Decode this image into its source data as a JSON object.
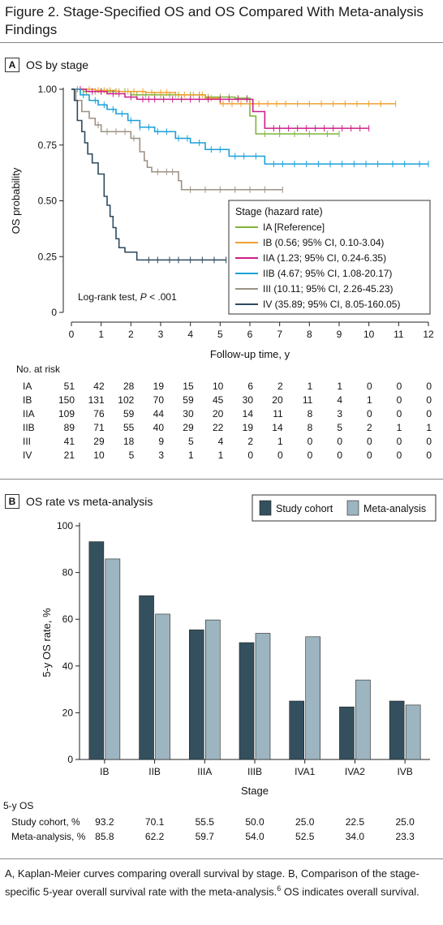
{
  "figure": {
    "title_line1": "Figure 2. Stage-Specified OS and OS Compared With Meta-analysis",
    "title_line2": "Findings",
    "caption_part1": "A, Kaplan-Meier curves comparing overall survival by stage. B, Comparison of the stage-specific 5-year overall survival rate with the meta-analysis.",
    "caption_sup": "6",
    "caption_part2": " OS indicates overall survival."
  },
  "panel_a": {
    "letter": "A",
    "title": "OS by stage",
    "note_prefix": "Log-rank test, ",
    "note_italic": "P",
    "note_suffix": " < .001",
    "risk_title": "No. at risk"
  },
  "panel_b": {
    "letter": "B",
    "title": "OS rate vs meta-analysis",
    "table_title": "5-y OS"
  },
  "colors": {
    "IA": "#7fb539",
    "IB": "#f0a030",
    "IIA": "#cc1e88",
    "IIB": "#1aa0d8",
    "III": "#9c9284",
    "IV": "#2e4a5e",
    "study": "#34505e",
    "meta": "#9db5c0"
  },
  "chart_data": [
    {
      "type": "line",
      "title": "OS by stage",
      "xlabel": "Follow-up time, y",
      "ylabel": "OS probability",
      "xlim": [
        0,
        12
      ],
      "ylim": [
        0,
        1
      ],
      "xticks": [
        0,
        1,
        2,
        3,
        4,
        5,
        6,
        7,
        8,
        9,
        10,
        11,
        12
      ],
      "yticks": [
        0,
        0.25,
        0.5,
        0.75,
        1.0
      ],
      "ytick_labels": [
        "0",
        "0.25",
        "0.50",
        "0.75",
        "1.00"
      ],
      "legend_title": "Stage (hazard rate)",
      "legend_position": "right",
      "series": [
        {
          "name": "IA [Reference]",
          "key": "IA",
          "x": [
            0,
            0.4,
            2.0,
            4.5,
            5.5,
            6.0,
            6.2,
            9.0
          ],
          "y": [
            1.0,
            0.99,
            0.975,
            0.965,
            0.96,
            0.88,
            0.8,
            0.8
          ],
          "censor_x": [
            0.2,
            0.5,
            0.8,
            1.0,
            1.2,
            1.5,
            1.8,
            2.2,
            2.5,
            2.8,
            3.0,
            3.3,
            3.6,
            4.0,
            4.3,
            4.6,
            5.0,
            5.3,
            5.6,
            5.9,
            6.5,
            7.0,
            7.5,
            8.0,
            8.6,
            9.0
          ]
        },
        {
          "name": "IB (0.56; 95% CI, 0.10-3.04)",
          "key": "IB",
          "x": [
            0,
            0.8,
            1.5,
            2.5,
            3.5,
            4.5,
            5.0,
            10.9
          ],
          "y": [
            1.0,
            0.995,
            0.99,
            0.985,
            0.975,
            0.96,
            0.935,
            0.935
          ],
          "censor_x": [
            0.3,
            0.6,
            0.9,
            1.1,
            1.3,
            1.6,
            1.9,
            2.1,
            2.4,
            2.7,
            3.0,
            3.2,
            3.5,
            3.8,
            4.1,
            4.4,
            4.7,
            5.1,
            5.4,
            5.7,
            6.0,
            6.3,
            6.6,
            6.9,
            7.2,
            7.6,
            8.0,
            8.4,
            8.8,
            9.2,
            9.6,
            10.0,
            10.4,
            10.9
          ]
        },
        {
          "name": "IIA (1.23; 95% CI, 0.24-6.35)",
          "key": "IIA",
          "x": [
            0,
            0.5,
            1.2,
            1.8,
            2.2,
            6.1,
            6.5,
            10.0
          ],
          "y": [
            1.0,
            0.99,
            0.98,
            0.965,
            0.955,
            0.9,
            0.825,
            0.825
          ],
          "censor_x": [
            0.3,
            0.7,
            1.0,
            1.4,
            1.6,
            2.0,
            2.4,
            2.6,
            2.8,
            3.1,
            3.4,
            3.7,
            4.0,
            4.3,
            4.6,
            5.0,
            5.3,
            5.6,
            5.9,
            6.8,
            7.0,
            7.3,
            7.6,
            7.9,
            8.2,
            8.5,
            8.8,
            9.1,
            9.4,
            9.7,
            10.0
          ]
        },
        {
          "name": "IIB (4.67; 95% CI, 1.08-20.17)",
          "key": "IIB",
          "x": [
            0,
            0.3,
            0.6,
            0.9,
            1.2,
            1.5,
            1.9,
            2.3,
            2.8,
            3.5,
            4.0,
            4.5,
            5.3,
            6.5,
            12.0
          ],
          "y": [
            1.0,
            0.975,
            0.95,
            0.93,
            0.91,
            0.89,
            0.86,
            0.83,
            0.81,
            0.78,
            0.76,
            0.73,
            0.7,
            0.665,
            0.665
          ],
          "censor_x": [
            0.4,
            0.8,
            1.1,
            1.4,
            1.7,
            2.0,
            2.3,
            2.6,
            2.9,
            3.2,
            3.6,
            3.9,
            4.3,
            4.7,
            5.0,
            5.5,
            5.8,
            6.2,
            6.8,
            7.1,
            7.5,
            7.9,
            8.3,
            8.7,
            9.1,
            9.5,
            9.9,
            10.3,
            10.8,
            11.2,
            11.7,
            12.0
          ]
        },
        {
          "name": "III (10.11; 95% CI, 2.26-45.23)",
          "key": "III",
          "x": [
            0,
            0.15,
            0.35,
            0.6,
            0.8,
            1.0,
            2.0,
            2.3,
            2.45,
            2.55,
            2.7,
            3.6,
            3.7,
            7.1
          ],
          "y": [
            1.0,
            0.95,
            0.9,
            0.87,
            0.84,
            0.81,
            0.78,
            0.72,
            0.68,
            0.65,
            0.63,
            0.59,
            0.55,
            0.55
          ],
          "censor_x": [
            0.9,
            1.2,
            1.5,
            1.8,
            2.1,
            2.9,
            3.2,
            3.4,
            4.0,
            4.5,
            5.0,
            5.5,
            6.0,
            6.5,
            7.1
          ]
        },
        {
          "name": "IV (35.89; 95% CI, 8.05-160.05)",
          "key": "IV",
          "x": [
            0,
            0.1,
            0.2,
            0.35,
            0.45,
            0.55,
            0.7,
            0.9,
            1.1,
            1.2,
            1.3,
            1.4,
            1.5,
            1.6,
            1.8,
            2.2,
            5.2
          ],
          "y": [
            1.0,
            0.95,
            0.86,
            0.81,
            0.76,
            0.71,
            0.67,
            0.62,
            0.52,
            0.48,
            0.43,
            0.38,
            0.33,
            0.29,
            0.27,
            0.235,
            0.235
          ],
          "censor_x": [
            2.6,
            2.9,
            3.3,
            3.6,
            4.0,
            4.4,
            4.8,
            5.2
          ]
        }
      ],
      "annotation": "Log-rank test, P < .001"
    },
    {
      "type": "table",
      "title": "No. at risk",
      "columns": [
        0,
        1,
        2,
        3,
        4,
        5,
        6,
        7,
        8,
        9,
        10,
        11,
        12
      ],
      "rows": [
        {
          "label": "IA",
          "values": [
            51,
            42,
            28,
            19,
            15,
            10,
            6,
            2,
            1,
            1,
            0,
            0,
            0
          ]
        },
        {
          "label": "IB",
          "values": [
            150,
            131,
            102,
            70,
            59,
            45,
            30,
            20,
            11,
            4,
            1,
            0,
            0
          ]
        },
        {
          "label": "IIA",
          "values": [
            109,
            76,
            59,
            44,
            30,
            20,
            14,
            11,
            8,
            3,
            0,
            0,
            0
          ]
        },
        {
          "label": "IIB",
          "values": [
            89,
            71,
            55,
            40,
            29,
            22,
            19,
            14,
            8,
            5,
            2,
            1,
            1
          ]
        },
        {
          "label": "III",
          "values": [
            41,
            29,
            18,
            9,
            5,
            4,
            2,
            1,
            0,
            0,
            0,
            0,
            0
          ]
        },
        {
          "label": "IV",
          "values": [
            21,
            10,
            5,
            3,
            1,
            1,
            0,
            0,
            0,
            0,
            0,
            0,
            0
          ]
        }
      ]
    },
    {
      "type": "bar",
      "title": "OS rate vs meta-analysis",
      "xlabel": "Stage",
      "ylabel": "5-y OS rate, %",
      "ylim": [
        0,
        100
      ],
      "yticks": [
        0,
        20,
        40,
        60,
        80,
        100
      ],
      "legend_position": "top-right",
      "categories": [
        "IB",
        "IIB",
        "IIIA",
        "IIIB",
        "IVA1",
        "IVA2",
        "IVB"
      ],
      "series": [
        {
          "name": "Study cohort",
          "key": "study",
          "values": [
            93.2,
            70.1,
            55.5,
            50.0,
            25.0,
            22.5,
            25.0
          ],
          "labels": [
            "93.2",
            "70.1",
            "55.5",
            "50.0",
            "25.0",
            "22.5",
            "25.0"
          ]
        },
        {
          "name": "Meta-analysis",
          "key": "meta",
          "values": [
            85.8,
            62.2,
            59.7,
            54.0,
            52.5,
            34.0,
            23.3
          ],
          "labels": [
            "85.8",
            "62.2",
            "59.7",
            "54.0",
            "52.5",
            "34.0",
            "23.3"
          ]
        }
      ],
      "table_row_labels": [
        "Study cohort, %",
        "Meta-analysis, %"
      ]
    }
  ]
}
